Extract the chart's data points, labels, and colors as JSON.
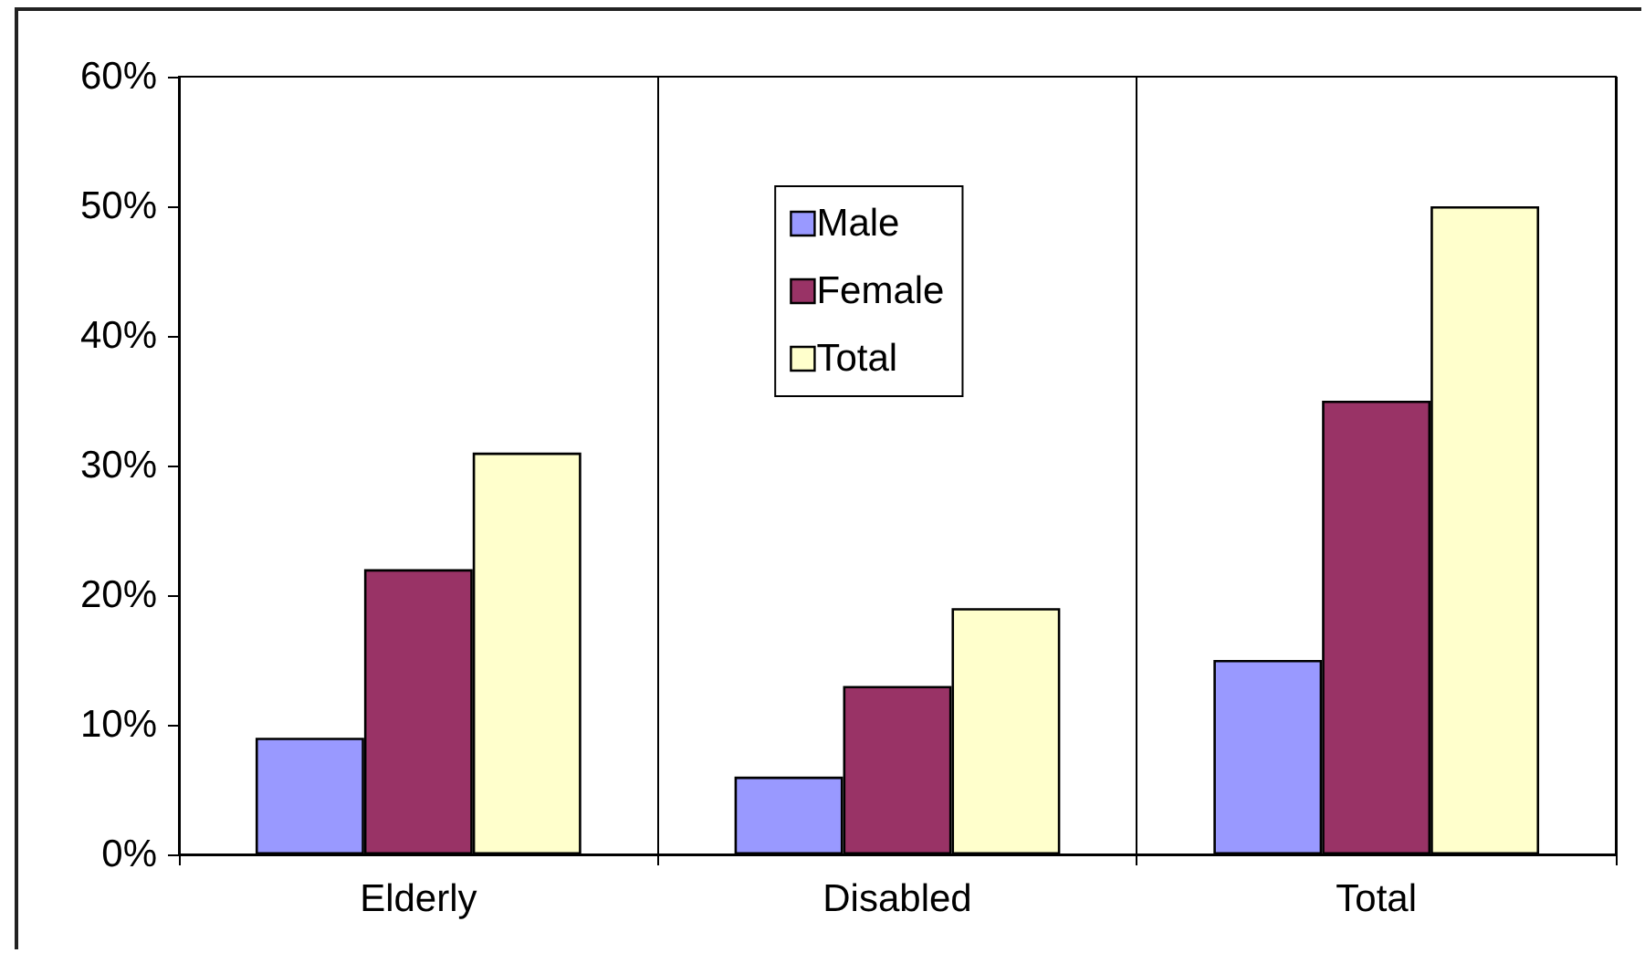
{
  "chart_data": {
    "type": "bar",
    "categories": [
      "Elderly",
      "Disabled",
      "Total"
    ],
    "series": [
      {
        "name": "Male",
        "color": "#9999ff",
        "values": [
          9,
          6,
          15
        ]
      },
      {
        "name": "Female",
        "color": "#993366",
        "values": [
          22,
          13,
          35
        ]
      },
      {
        "name": "Total",
        "color": "#ffffcc",
        "values": [
          31,
          19,
          50
        ]
      }
    ],
    "ylim": [
      0,
      60
    ],
    "yticks": [
      {
        "value": 0,
        "label": "0%"
      },
      {
        "value": 10,
        "label": "10%"
      },
      {
        "value": 20,
        "label": "20%"
      },
      {
        "value": 30,
        "label": "30%"
      },
      {
        "value": 40,
        "label": "40%"
      },
      {
        "value": 50,
        "label": "50%"
      },
      {
        "value": 60,
        "label": "60%"
      }
    ],
    "grid": "x",
    "legend": "top"
  }
}
